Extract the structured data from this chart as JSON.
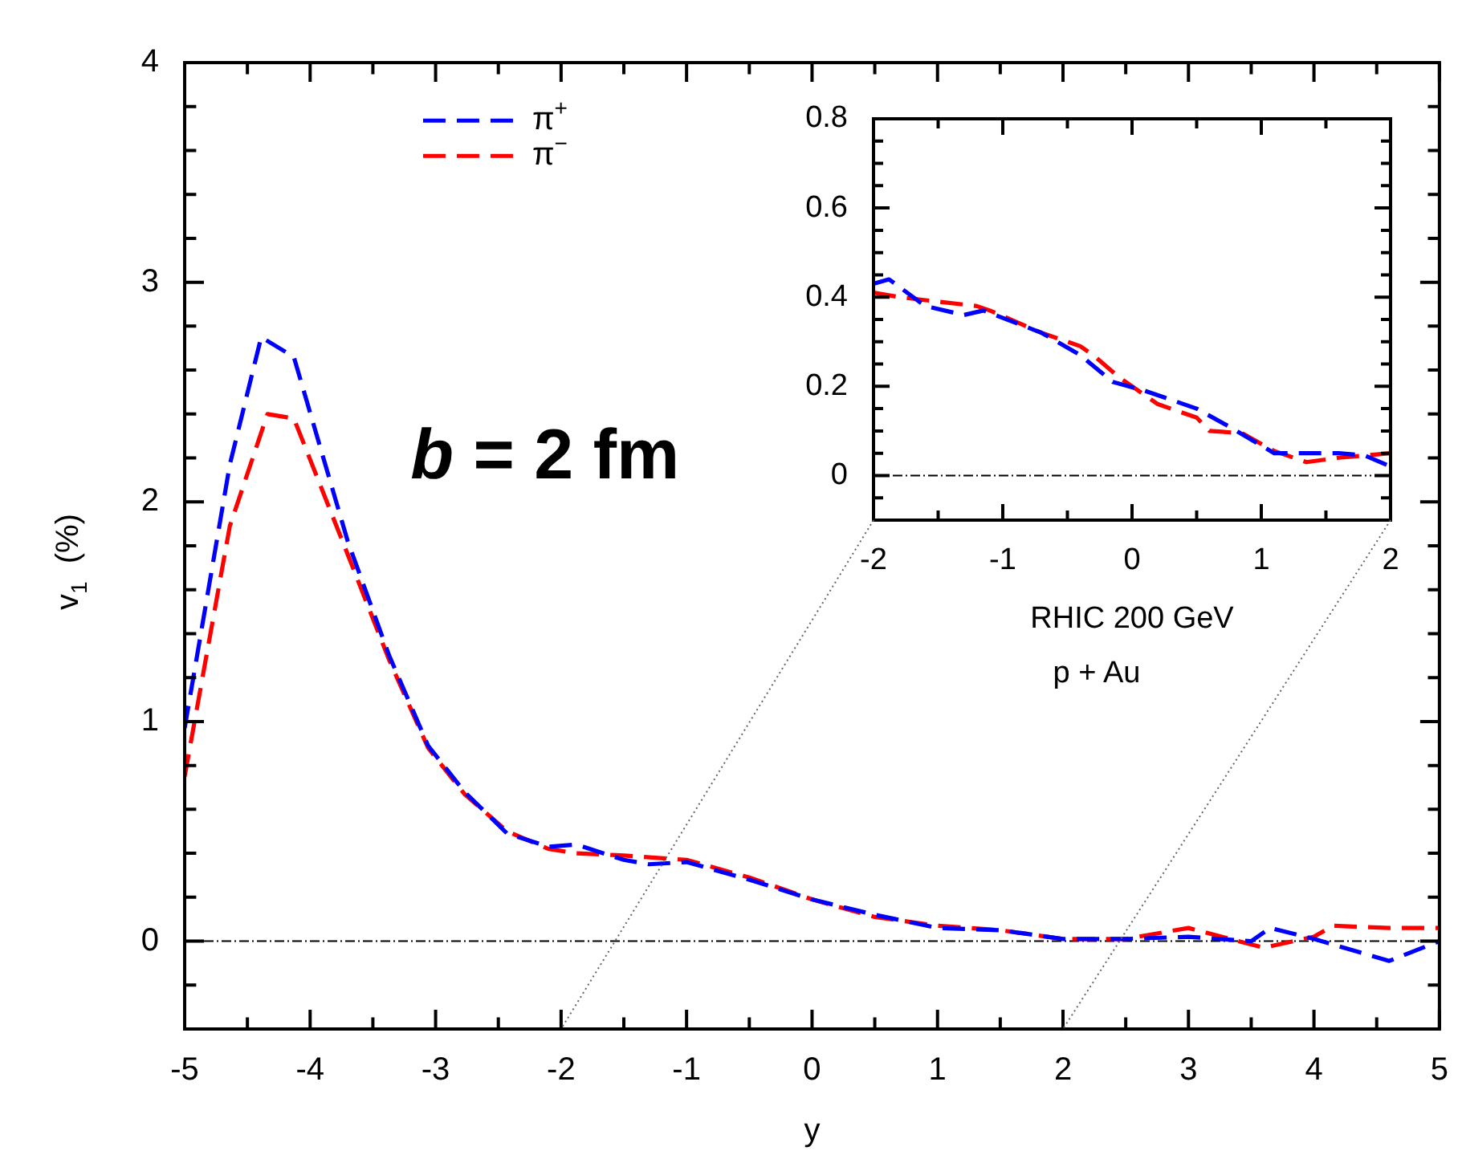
{
  "chart_data": [
    {
      "type": "line",
      "xlabel": "y",
      "ylabel": "v$_{1}$  (%)",
      "xlim": [
        -5,
        5
      ],
      "ylim": [
        -0.4,
        4
      ],
      "xticks": [
        -5,
        -4,
        -3,
        -2,
        -1,
        0,
        1,
        2,
        3,
        4,
        5
      ],
      "yticks": [
        0,
        1,
        2,
        3,
        4
      ],
      "legend": "top left",
      "line_style": "dashed",
      "annotations": [
        "b = 2 fm"
      ],
      "ref_lines": [
        {
          "axis": "y",
          "value": 0
        }
      ],
      "series": [
        {
          "name": "π$^{+}$",
          "color": "#0000ff",
          "x": [
            -5,
            -4.64,
            -4.39,
            -4.13,
            -3.7,
            -3.37,
            -3.06,
            -2.77,
            -2.43,
            -2.1,
            -1.88,
            -1.5,
            -1.3,
            -1,
            -0.5,
            0,
            0.5,
            1,
            1.5,
            2,
            2.5,
            3,
            3.5,
            3.65,
            4,
            4.6,
            5
          ],
          "values": [
            0.97,
            2.17,
            2.75,
            2.66,
            1.82,
            1.3,
            0.89,
            0.68,
            0.49,
            0.43,
            0.44,
            0.37,
            0.35,
            0.36,
            0.28,
            0.19,
            0.12,
            0.06,
            0.05,
            0.01,
            0.01,
            0.02,
            0,
            0.06,
            0.01,
            -0.09,
            0
          ]
        },
        {
          "name": "π$^{−}$",
          "color": "#ff0000",
          "x": [
            -5,
            -4.64,
            -4.34,
            -4.13,
            -3.7,
            -3.37,
            -3.06,
            -2.77,
            -2.43,
            -2.1,
            -1.88,
            -1.5,
            -1,
            -0.5,
            0,
            0.5,
            1,
            1.5,
            2,
            2.5,
            3,
            3.6,
            4,
            4.15,
            4.6,
            5
          ],
          "values": [
            0.75,
            1.89,
            2.4,
            2.38,
            1.76,
            1.28,
            0.88,
            0.67,
            0.5,
            0.42,
            0.4,
            0.39,
            0.37,
            0.29,
            0.19,
            0.11,
            0.07,
            0.05,
            0.01,
            0.01,
            0.06,
            -0.03,
            0.02,
            0.07,
            0.06,
            0.06
          ]
        }
      ]
    },
    {
      "type": "line",
      "xlim": [
        -2,
        2
      ],
      "ylim": [
        -0.1,
        0.8
      ],
      "xticks": [
        -2,
        -1,
        0,
        1,
        2
      ],
      "yticks": [
        0,
        0.2,
        0.4,
        0.6,
        0.8
      ],
      "line_style": "dashed",
      "annotations": [
        "RHIC 200 GeV",
        "p + Au"
      ],
      "ref_lines": [
        {
          "axis": "y",
          "value": 0
        }
      ],
      "series": [
        {
          "color": "#0000ff",
          "x": [
            -2,
            -1.88,
            -1.6,
            -1.3,
            -1.15,
            -0.7,
            -0.4,
            -0.15,
            0.1,
            0.5,
            0.75,
            1.1,
            1.3,
            1.6,
            1.8,
            2
          ],
          "values": [
            0.43,
            0.44,
            0.38,
            0.36,
            0.37,
            0.32,
            0.27,
            0.21,
            0.19,
            0.15,
            0.11,
            0.05,
            0.05,
            0.05,
            0.045,
            0.02
          ]
        },
        {
          "color": "#ff0000",
          "x": [
            -2,
            -1.8,
            -1.2,
            -1.1,
            -0.7,
            -0.4,
            -0.3,
            -0.1,
            0.2,
            0.5,
            0.6,
            0.85,
            1.1,
            1.35,
            1.6,
            2
          ],
          "values": [
            0.41,
            0.4,
            0.38,
            0.37,
            0.32,
            0.29,
            0.27,
            0.22,
            0.16,
            0.13,
            0.1,
            0.095,
            0.055,
            0.03,
            0.04,
            0.05
          ]
        }
      ]
    }
  ]
}
